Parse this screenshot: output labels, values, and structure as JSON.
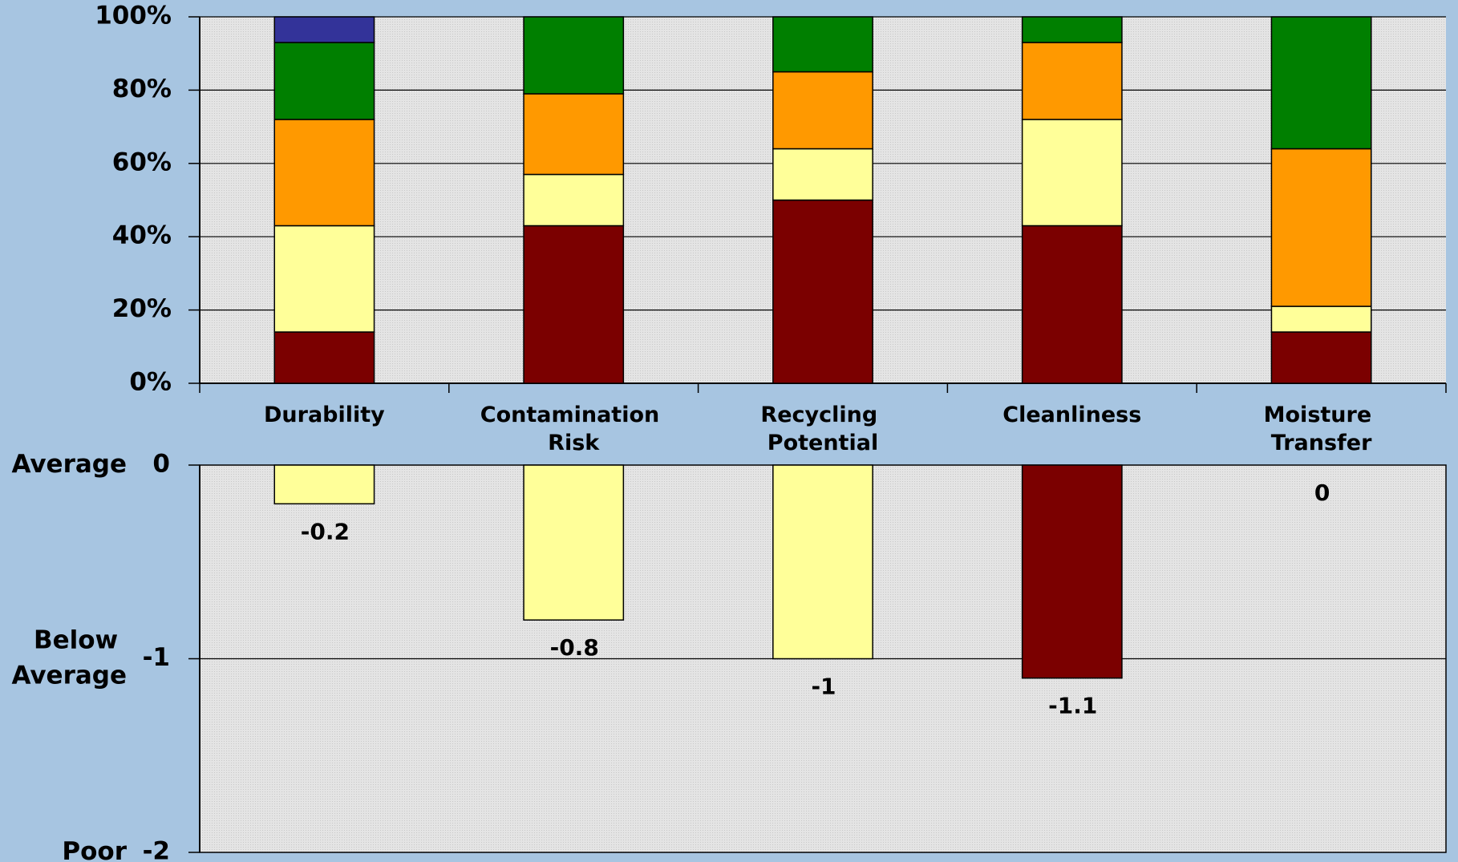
{
  "chart_data": [
    {
      "type": "stacked_bar",
      "categories": [
        "Durability",
        "Contamination Risk",
        "Recycling Potential",
        "Cleanliness",
        "Moisture Transfer"
      ],
      "series": [
        {
          "color": "#7b0000",
          "values": [
            14,
            43,
            50,
            43,
            14
          ]
        },
        {
          "color": "#ffff99",
          "values": [
            29,
            14,
            14,
            29,
            7
          ]
        },
        {
          "color": "#ff9900",
          "values": [
            29,
            22,
            21,
            21,
            43
          ]
        },
        {
          "color": "#007f00",
          "values": [
            21,
            21,
            15,
            7,
            36
          ]
        },
        {
          "color": "#333399",
          "values": [
            7,
            0,
            0,
            0,
            0
          ]
        }
      ],
      "ylim": [
        0,
        100
      ],
      "yticks": [
        {
          "value": 0,
          "label": "0%"
        },
        {
          "value": 20,
          "label": "20%"
        },
        {
          "value": 40,
          "label": "40%"
        },
        {
          "value": 60,
          "label": "60%"
        },
        {
          "value": 80,
          "label": "80%"
        },
        {
          "value": 100,
          "label": "100%"
        }
      ],
      "grid": true
    },
    {
      "type": "bar",
      "values": [
        -0.2,
        -0.8,
        -1,
        -1.1,
        0
      ],
      "colors": [
        "#ffff99",
        "#ffff99",
        "#ffff99",
        "#7b0000",
        "#ffff99"
      ],
      "ylim": [
        -2,
        0
      ],
      "yticks": [
        0,
        -1,
        -2
      ],
      "ytick_names": [
        "Average",
        "Below Average",
        "Poor"
      ],
      "grid": true
    }
  ]
}
